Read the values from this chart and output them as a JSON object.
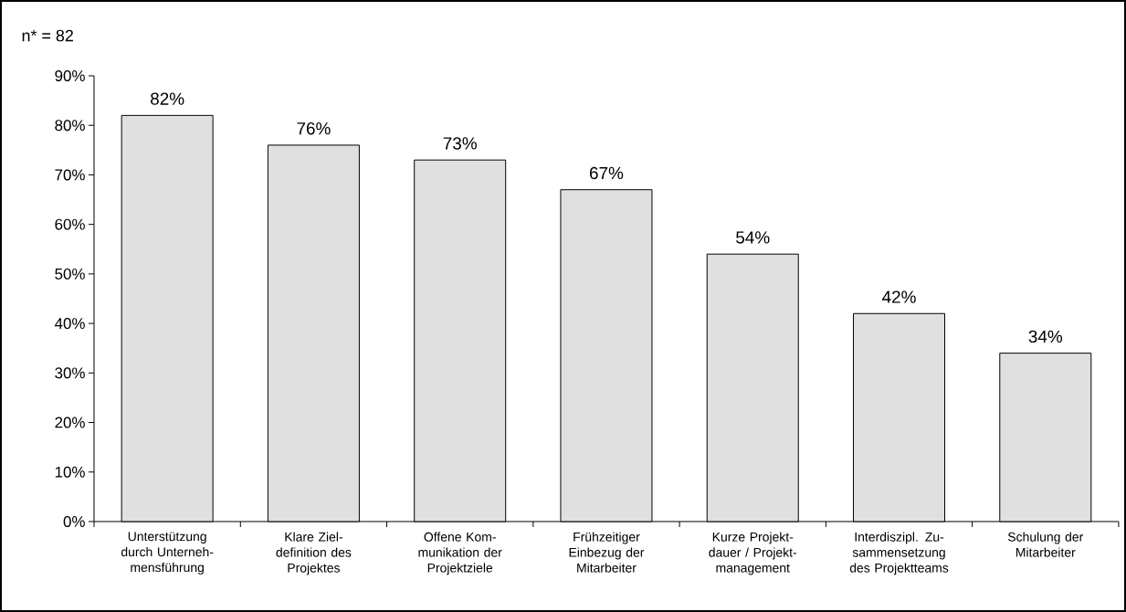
{
  "chart_data": {
    "type": "bar",
    "title": "n* = 82",
    "categories": [
      "Unterstützung durch Unterneh- mensführung",
      "Klare Ziel- definition des Projektes",
      "Offene Kom- munikation der Projektziele",
      "Frühzeitiger Einbezug der Mitarbeiter",
      "Kurze Projekt- dauer / Projekt- management",
      "Interdiszipl. Zu- sammensetzung des Projektteams",
      "Schulung der Mitarbeiter"
    ],
    "values": [
      82,
      76,
      73,
      67,
      54,
      42,
      34
    ],
    "value_labels": [
      "82%",
      "76%",
      "73%",
      "67%",
      "54%",
      "42%",
      "34%"
    ],
    "color": "#e0e0e0",
    "ylim": [
      0,
      90
    ],
    "yticks": [
      {
        "value": 0,
        "label": "0%"
      },
      {
        "value": 10,
        "label": "10%"
      },
      {
        "value": 20,
        "label": "20%"
      },
      {
        "value": 30,
        "label": "30%"
      },
      {
        "value": 40,
        "label": "40%"
      },
      {
        "value": 50,
        "label": "50%"
      },
      {
        "value": 60,
        "label": "60%"
      },
      {
        "value": 70,
        "label": "70%"
      },
      {
        "value": 80,
        "label": "80%"
      },
      {
        "value": 90,
        "label": "90%"
      }
    ],
    "grid": false
  }
}
